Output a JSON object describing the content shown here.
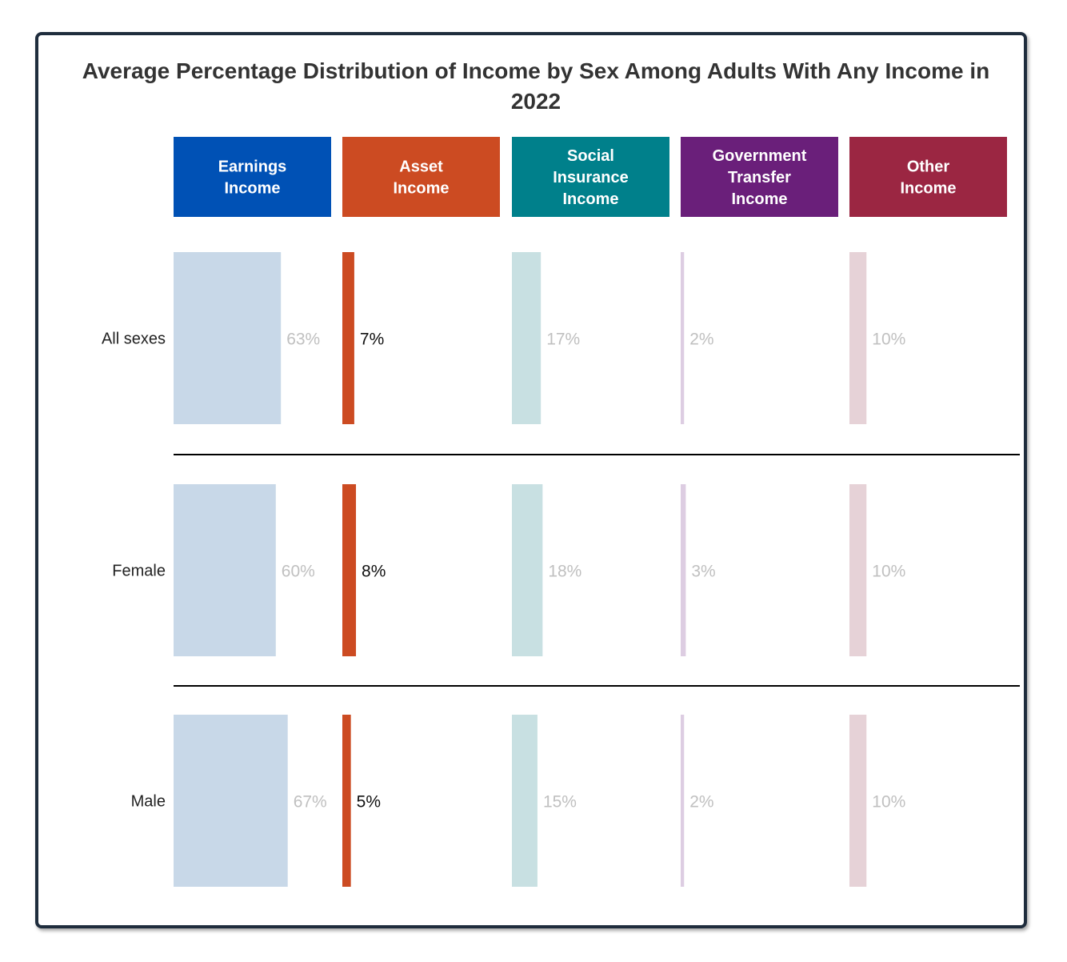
{
  "chart_data": {
    "type": "bar",
    "title": "Average Percentage Distribution of Income by Sex Among Adults With Any Income in 2022",
    "categories": [
      "All sexes",
      "Female",
      "Male"
    ],
    "series": [
      {
        "name": "Earnings Income",
        "values": [
          63,
          60,
          67
        ],
        "color": "#0051b5",
        "bar_color": "#c8d8e8",
        "label_color": "#c0c0c0",
        "labels": [
          "63%",
          "60%",
          "67%"
        ]
      },
      {
        "name": "Asset Income",
        "values": [
          7,
          8,
          5
        ],
        "color": "#cc4b22",
        "bar_color": "#cc4b22",
        "label_color": "#111111",
        "labels": [
          "7%",
          "8%",
          "5%"
        ]
      },
      {
        "name": "Social Insurance Income",
        "values": [
          17,
          18,
          15
        ],
        "color": "#00808b",
        "bar_color": "#c8e0e2",
        "label_color": "#c0c0c0",
        "labels": [
          "17%",
          "18%",
          "15%"
        ]
      },
      {
        "name": "Government Transfer Income",
        "values": [
          2,
          3,
          2
        ],
        "color": "#6a1f7a",
        "bar_color": "#ddcde2",
        "label_color": "#c0c0c0",
        "labels": [
          "2%",
          "3%",
          "2%"
        ]
      },
      {
        "name": "Other Income",
        "values": [
          10,
          10,
          10
        ],
        "color": "#9b2642",
        "bar_color": "#e6d2d7",
        "label_color": "#c0c0c0",
        "labels": [
          "10%",
          "10%",
          "10%"
        ]
      }
    ],
    "header_lines": [
      [
        "Earnings",
        "Income"
      ],
      [
        "Asset",
        "Income"
      ],
      [
        "Social",
        "Insurance",
        "Income"
      ],
      [
        "Government",
        "Transfer",
        "Income"
      ],
      [
        "Other",
        "Income"
      ]
    ],
    "x_max_percent": 100,
    "units": "%",
    "grid": false,
    "legend": "none"
  }
}
